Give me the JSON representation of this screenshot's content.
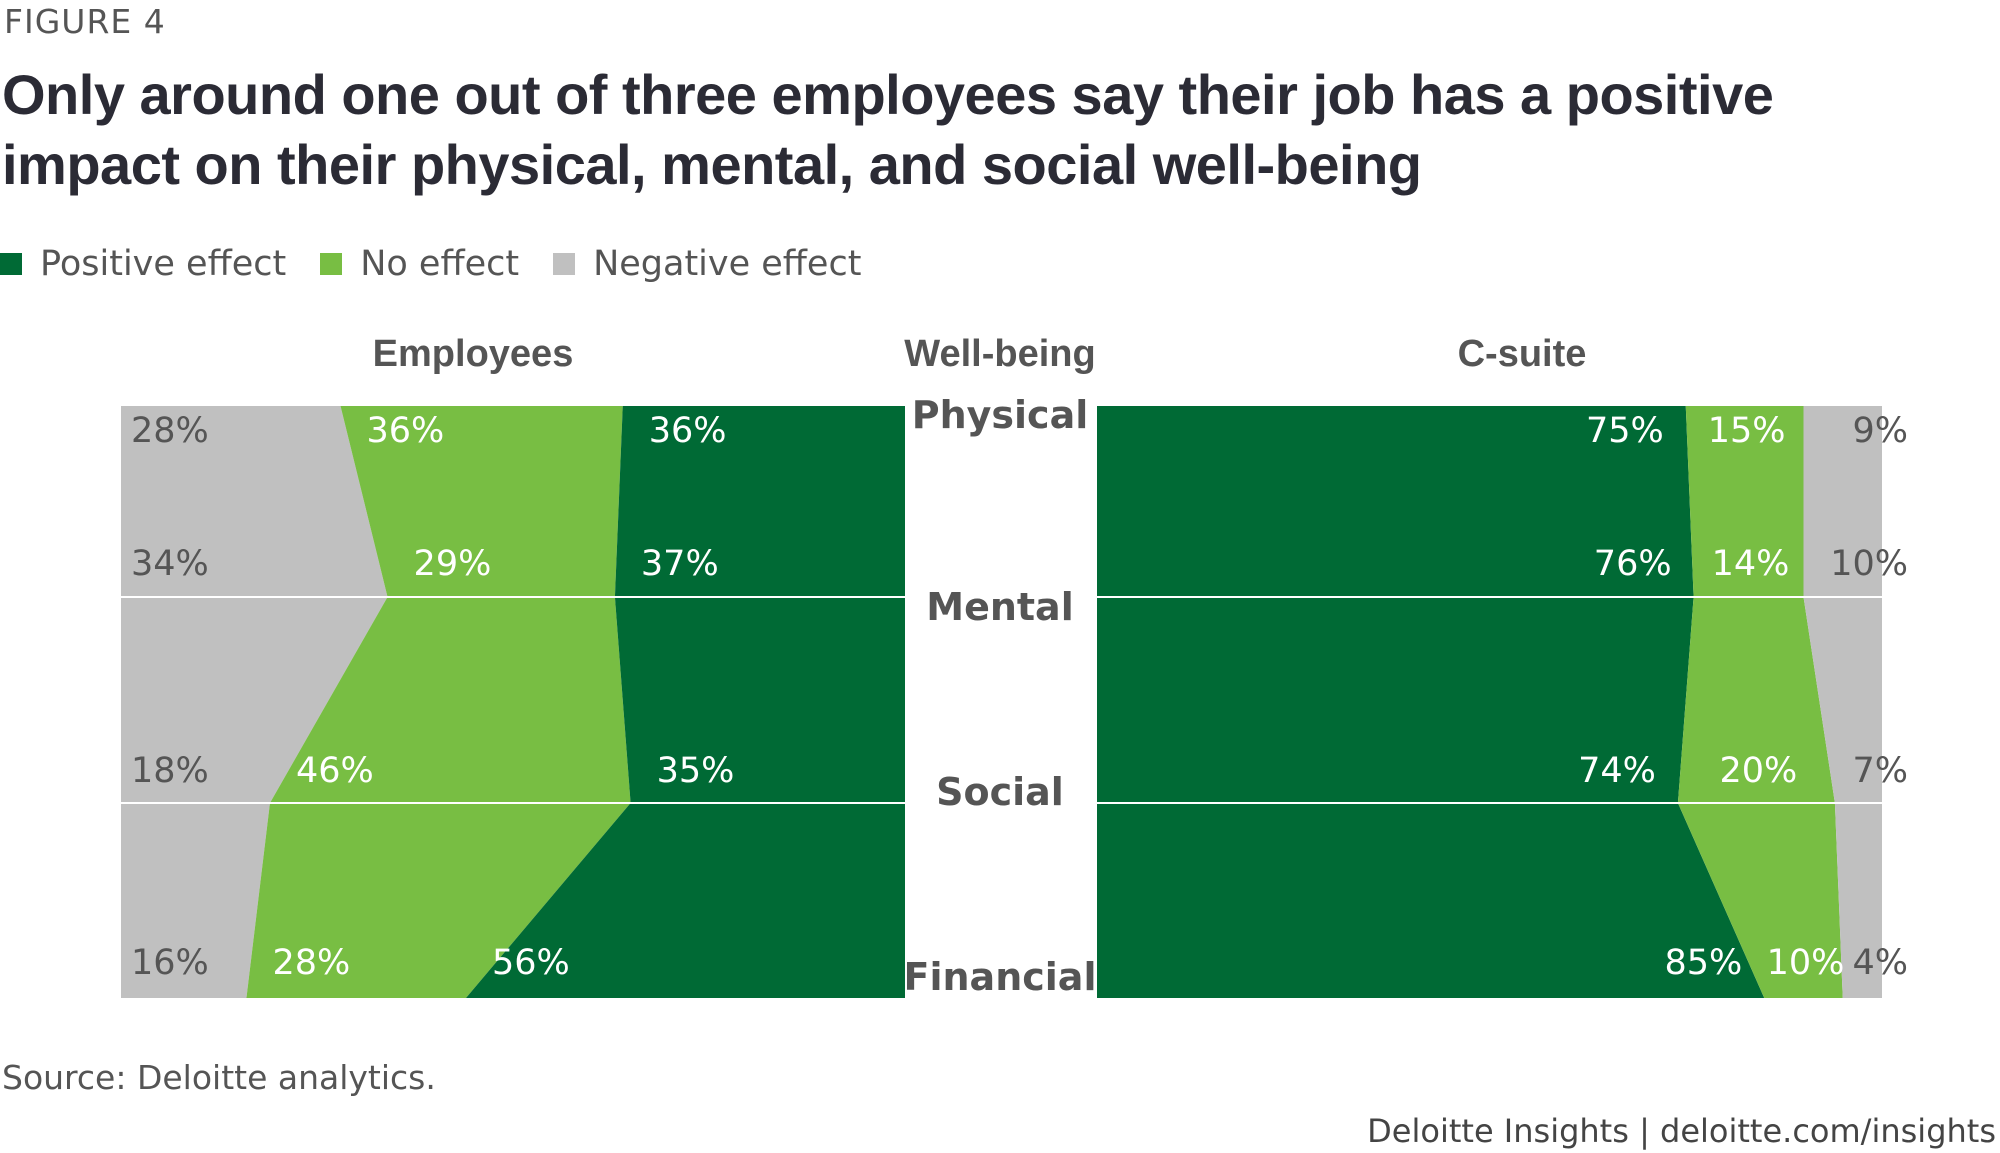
{
  "figure_label": "FIGURE 4",
  "title": "Only around one out of three employees say their job has a positive impact on their physical, mental, and social well-being",
  "legend": [
    {
      "label": "Positive effect",
      "color": "#006a35"
    },
    {
      "label": "No effect",
      "color": "#78be43"
    },
    {
      "label": "Negative effect",
      "color": "#c0c0c0"
    }
  ],
  "source": "Source: Deloitte analytics.",
  "footer": "Deloitte Insights | deloitte.com/insights",
  "chart_data": {
    "type": "area",
    "headers": {
      "left": "Employees",
      "center": "Well-being",
      "right": "C-suite"
    },
    "categories": [
      "Physical",
      "Mental",
      "Social",
      "Financial"
    ],
    "groups": [
      {
        "name": "Employees",
        "series": [
          {
            "name": "Positive effect",
            "values": [
              36,
              37,
              35,
              56
            ],
            "labels": [
              "36%",
              "37%",
              "35%",
              "56%"
            ]
          },
          {
            "name": "No effect",
            "values": [
              36,
              29,
              46,
              28
            ],
            "labels": [
              "36%",
              "29%",
              "46%",
              "28%"
            ]
          },
          {
            "name": "Negative effect",
            "values": [
              28,
              34,
              18,
              16
            ],
            "labels": [
              "28%",
              "34%",
              "18%",
              "16%"
            ]
          }
        ]
      },
      {
        "name": "C-suite",
        "series": [
          {
            "name": "Positive effect",
            "values": [
              75,
              76,
              74,
              85
            ],
            "labels": [
              "75%",
              "76%",
              "74%",
              "85%"
            ]
          },
          {
            "name": "No effect",
            "values": [
              15,
              14,
              20,
              10
            ],
            "labels": [
              "15%",
              "14%",
              "20%",
              "10%"
            ]
          },
          {
            "name": "Negative effect",
            "values": [
              9,
              10,
              7,
              4
            ],
            "labels": [
              "9%",
              "10%",
              "7%",
              "4%"
            ]
          }
        ]
      }
    ],
    "ylim": [
      0,
      100
    ]
  }
}
